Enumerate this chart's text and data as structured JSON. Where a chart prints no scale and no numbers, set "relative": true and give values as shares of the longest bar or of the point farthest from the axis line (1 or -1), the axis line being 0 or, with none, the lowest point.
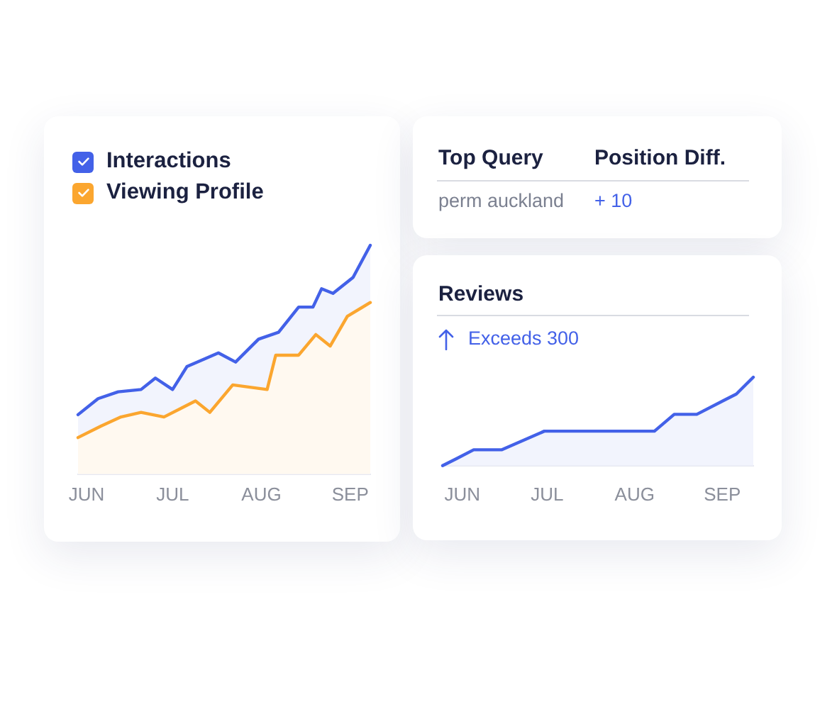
{
  "chart_data": [
    {
      "type": "area",
      "relative": true,
      "legend": "top left",
      "xlim": [
        "--05-29",
        "--09-08"
      ],
      "xticks": [
        {
          "value": "--06-01",
          "label": "JUN"
        },
        {
          "value": "--07-01",
          "label": "JUL"
        },
        {
          "value": "--08-01",
          "label": "AUG"
        },
        {
          "value": "--09-01",
          "label": "SEP"
        }
      ],
      "series": [
        {
          "name": "Interactions",
          "color": "#4361e8",
          "x": [
            "--05-29",
            "--06-05",
            "--06-12",
            "--06-20",
            "--06-25",
            "--07-01",
            "--07-06",
            "--07-17",
            "--07-23",
            "--07-31",
            "--08-07",
            "--08-14",
            "--08-19",
            "--08-22",
            "--08-26",
            "--09-02",
            "--09-08"
          ],
          "values": [
            0.26,
            0.33,
            0.36,
            0.37,
            0.42,
            0.37,
            0.47,
            0.53,
            0.49,
            0.59,
            0.62,
            0.73,
            0.73,
            0.81,
            0.79,
            0.86,
            1
          ]
        },
        {
          "name": "Viewing Profile",
          "color": "#fba62f",
          "x": [
            "--05-29",
            "--06-06",
            "--06-13",
            "--06-20",
            "--06-28",
            "--07-09",
            "--07-14",
            "--07-22",
            "--08-03",
            "--08-06",
            "--08-14",
            "--08-20",
            "--08-25",
            "--08-31",
            "--09-08"
          ],
          "values": [
            0.16,
            0.21,
            0.25,
            0.27,
            0.25,
            0.32,
            0.27,
            0.39,
            0.37,
            0.52,
            0.52,
            0.61,
            0.56,
            0.69,
            0.75
          ]
        }
      ]
    },
    {
      "type": "other",
      "annotations": [
        "Top Query",
        "Position Diff.",
        "perm auckland",
        "+ 10"
      ]
    },
    {
      "type": "area",
      "relative": true,
      "title": "Reviews",
      "annotations": [
        "Exceeds 300"
      ],
      "xlim": [
        "--05-25",
        "--09-12"
      ],
      "xticks": [
        {
          "value": "--06-01",
          "label": "JUN"
        },
        {
          "value": "--07-01",
          "label": "JUL"
        },
        {
          "value": "--08-01",
          "label": "AUG"
        },
        {
          "value": "--09-01",
          "label": "SEP"
        }
      ],
      "x": [
        "--05-25",
        "--05-30",
        "--06-05",
        "--06-15",
        "--06-30",
        "--08-08",
        "--08-15",
        "--08-23",
        "--09-06",
        "--09-12"
      ],
      "values": [
        0,
        0.08,
        0.18,
        0.18,
        0.39,
        0.39,
        0.58,
        0.58,
        0.81,
        1
      ],
      "color": "#4361e8"
    }
  ]
}
